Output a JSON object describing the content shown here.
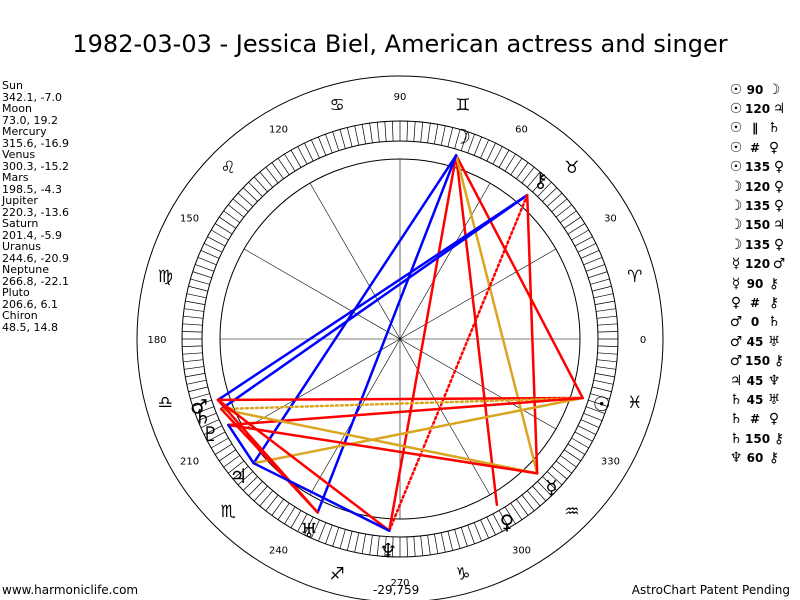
{
  "title": "1982-03-03 - Jessica Biel, American actress and singer",
  "footer": {
    "left": "www.harmoniclife.com",
    "right": "AstroChart Patent Pending",
    "mid": "-29,759"
  },
  "chart_data": {
    "type": "astrological-wheel",
    "title": "1982-03-03 - Jessica Biel, American actress and singer",
    "degree_labels": [
      "0",
      "30",
      "60",
      "90",
      "120",
      "150",
      "180",
      "210",
      "240",
      "270",
      "300",
      "330"
    ],
    "planets": [
      {
        "name": "Sun",
        "glyph": "☉",
        "coords": "342.1, -7.0",
        "lon": 342.1,
        "lat": -7.0
      },
      {
        "name": "Moon",
        "glyph": "☽",
        "coords": "73.0, 19.2",
        "lon": 73.0,
        "lat": 19.2
      },
      {
        "name": "Mercury",
        "glyph": "☿",
        "coords": "315.6, -16.9",
        "lon": 315.6,
        "lat": -16.9
      },
      {
        "name": "Venus",
        "glyph": "♀",
        "coords": "300.3, -15.2",
        "lon": 300.3,
        "lat": -15.2
      },
      {
        "name": "Mars",
        "glyph": "♂",
        "coords": "198.5, -4.3",
        "lon": 198.5,
        "lat": -4.3
      },
      {
        "name": "Jupiter",
        "glyph": "♃",
        "coords": "220.3, -13.6",
        "lon": 220.3,
        "lat": -13.6
      },
      {
        "name": "Saturn",
        "glyph": "♄",
        "coords": "201.4, -5.9",
        "lon": 201.4,
        "lat": -5.9
      },
      {
        "name": "Uranus",
        "glyph": "♅",
        "coords": "244.6, -20.9",
        "lon": 244.6,
        "lat": -20.9
      },
      {
        "name": "Neptune",
        "glyph": "♆",
        "coords": "266.8, -22.1",
        "lon": 266.8,
        "lat": -22.1
      },
      {
        "name": "Pluto",
        "glyph": "♇",
        "coords": "206.6, 6.1",
        "lon": 206.6,
        "lat": 6.1
      },
      {
        "name": "Chiron",
        "glyph": "⚷",
        "coords": "48.5, 14.8",
        "lon": 48.5,
        "lat": 14.8
      }
    ],
    "aspects": [
      {
        "p1": "☉",
        "p1name": "Sun",
        "sym": "90",
        "p2": "☽",
        "p2name": "Moon"
      },
      {
        "p1": "☉",
        "p1name": "Sun",
        "sym": "120",
        "p2": "♃",
        "p2name": "Jupiter"
      },
      {
        "p1": "☉",
        "p1name": "Sun",
        "sym": "∥",
        "p2": "♄",
        "p2name": "Saturn"
      },
      {
        "p1": "☉",
        "p1name": "Sun",
        "sym": "#",
        "p2": "♀",
        "p2name": "Venus"
      },
      {
        "p1": "☉",
        "p1name": "Sun",
        "sym": "135",
        "p2": "♀",
        "p2name": "Venus"
      },
      {
        "p1": "☽",
        "p1name": "Moon",
        "sym": "120",
        "p2": "♀",
        "p2name": "Venus"
      },
      {
        "p1": "☽",
        "p1name": "Moon",
        "sym": "135",
        "p2": "♀",
        "p2name": "Venus"
      },
      {
        "p1": "☽",
        "p1name": "Moon",
        "sym": "150",
        "p2": "♃",
        "p2name": "Jupiter"
      },
      {
        "p1": "☽",
        "p1name": "Moon",
        "sym": "135",
        "p2": "♀",
        "p2name": "Venus"
      },
      {
        "p1": "☿",
        "p1name": "Mercury",
        "sym": "120",
        "p2": "♂",
        "p2name": "Mars"
      },
      {
        "p1": "☿",
        "p1name": "Mercury",
        "sym": "90",
        "p2": "⚷",
        "p2name": "Chiron"
      },
      {
        "p1": "♀",
        "p1name": "Venus",
        "sym": "#",
        "p2": "⚷",
        "p2name": "Chiron"
      },
      {
        "p1": "♂",
        "p1name": "Mars",
        "sym": "0",
        "p2": "♄",
        "p2name": "Saturn"
      },
      {
        "p1": "♂",
        "p1name": "Mars",
        "sym": "45",
        "p2": "♅",
        "p2name": "Uranus"
      },
      {
        "p1": "♂",
        "p1name": "Mars",
        "sym": "150",
        "p2": "⚷",
        "p2name": "Chiron"
      },
      {
        "p1": "♃",
        "p1name": "Jupiter",
        "sym": "45",
        "p2": "♆",
        "p2name": "Neptune"
      },
      {
        "p1": "♄",
        "p1name": "Saturn",
        "sym": "45",
        "p2": "♅",
        "p2name": "Uranus"
      },
      {
        "p1": "♄",
        "p1name": "Saturn",
        "sym": "#",
        "p2": "♀",
        "p2name": "Venus"
      },
      {
        "p1": "♄",
        "p1name": "Saturn",
        "sym": "150",
        "p2": "⚷",
        "p2name": "Chiron"
      },
      {
        "p1": "♆",
        "p1name": "Neptune",
        "sym": "60",
        "p2": "⚷",
        "p2name": "Chiron"
      }
    ],
    "aspect_lines": [
      {
        "from": "Moon",
        "to": "Venus",
        "color": "#ff0000",
        "style": "solid"
      },
      {
        "from": "Moon",
        "to": "Sun",
        "color": "#ff0000",
        "style": "solid"
      },
      {
        "from": "Moon",
        "to": "Neptune",
        "color": "#ff0000",
        "style": "solid"
      },
      {
        "from": "Moon",
        "to": "Mercury",
        "color": "#daa520",
        "style": "solid"
      },
      {
        "from": "Moon",
        "to": "Jupiter",
        "color": "#0000ff",
        "style": "solid"
      },
      {
        "from": "Moon",
        "to": "Uranus",
        "color": "#0000ff",
        "style": "solid"
      },
      {
        "from": "Chiron",
        "to": "Saturn",
        "color": "#0000ff",
        "style": "solid"
      },
      {
        "from": "Chiron",
        "to": "Mars",
        "color": "#0000ff",
        "style": "solid"
      },
      {
        "from": "Chiron",
        "to": "Mercury",
        "color": "#ff0000",
        "style": "solid"
      },
      {
        "from": "Chiron",
        "to": "Neptune",
        "color": "#ff0000",
        "style": "dotted"
      },
      {
        "from": "Sun",
        "to": "Mars",
        "color": "#ff0000",
        "style": "solid"
      },
      {
        "from": "Sun",
        "to": "Saturn",
        "color": "#daa520",
        "style": "dotted"
      },
      {
        "from": "Sun",
        "to": "Jupiter",
        "color": "#daa520",
        "style": "solid"
      },
      {
        "from": "Sun",
        "to": "Pluto",
        "color": "#ff0000",
        "style": "solid"
      },
      {
        "from": "Mercury",
        "to": "Saturn",
        "color": "#daa520",
        "style": "solid"
      },
      {
        "from": "Mercury",
        "to": "Pluto",
        "color": "#ff0000",
        "style": "solid"
      },
      {
        "from": "Mars",
        "to": "Neptune",
        "color": "#ff0000",
        "style": "solid"
      },
      {
        "from": "Saturn",
        "to": "Uranus",
        "color": "#ff0000",
        "style": "solid"
      },
      {
        "from": "Mars",
        "to": "Uranus",
        "color": "#ff0000",
        "style": "solid"
      },
      {
        "from": "Jupiter",
        "to": "Neptune",
        "color": "#0000ff",
        "style": "solid"
      },
      {
        "from": "Pluto",
        "to": "Jupiter",
        "color": "#0000ff",
        "style": "solid"
      }
    ]
  }
}
